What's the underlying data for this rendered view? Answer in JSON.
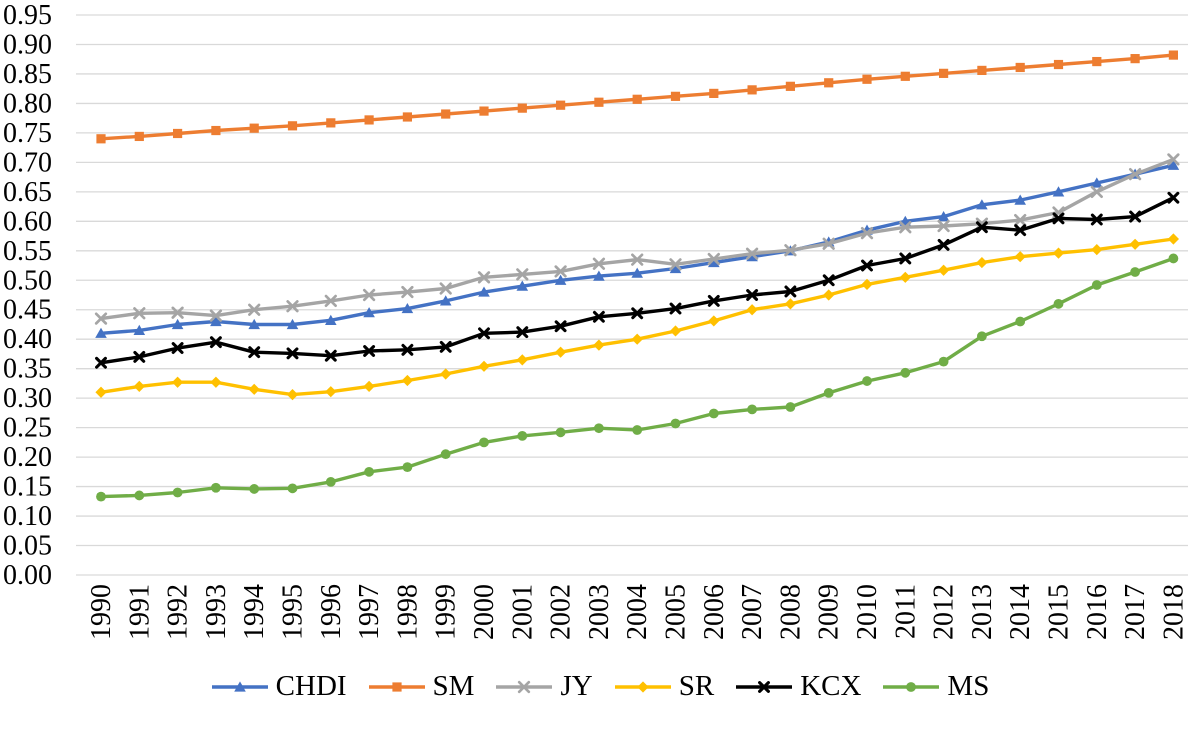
{
  "chart_data": {
    "type": "line",
    "title": "",
    "xlabel": "",
    "ylabel": "",
    "grid": true,
    "gridline_color": "#D9D9D9",
    "background_color": "#FFFFFF",
    "text_color": "#000000",
    "legend_position": "bottom",
    "ylim": [
      0.0,
      0.95
    ],
    "y_tick_step": 0.05,
    "y_tick_labels": [
      "0.00",
      "0.05",
      "0.10",
      "0.15",
      "0.20",
      "0.25",
      "0.30",
      "0.35",
      "0.40",
      "0.45",
      "0.50",
      "0.55",
      "0.60",
      "0.65",
      "0.70",
      "0.75",
      "0.80",
      "0.85",
      "0.90",
      "0.95"
    ],
    "categories": [
      "1990",
      "1991",
      "1992",
      "1993",
      "1994",
      "1995",
      "1996",
      "1997",
      "1998",
      "1999",
      "2000",
      "2001",
      "2002",
      "2003",
      "2004",
      "2005",
      "2006",
      "2007",
      "2008",
      "2009",
      "2010",
      "2011",
      "2012",
      "2013",
      "2014",
      "2015",
      "2016",
      "2017",
      "2018"
    ],
    "series": [
      {
        "name": "CHDI",
        "color": "#4472C4",
        "marker": "triangle",
        "values": [
          0.41,
          0.415,
          0.425,
          0.43,
          0.425,
          0.425,
          0.432,
          0.445,
          0.452,
          0.465,
          0.48,
          0.49,
          0.5,
          0.507,
          0.512,
          0.52,
          0.53,
          0.54,
          0.55,
          0.565,
          0.585,
          0.6,
          0.608,
          0.628,
          0.636,
          0.65,
          0.665,
          0.68,
          0.695
        ]
      },
      {
        "name": "SM",
        "color": "#ED7D31",
        "marker": "square",
        "values": [
          0.74,
          0.744,
          0.749,
          0.754,
          0.758,
          0.762,
          0.767,
          0.772,
          0.777,
          0.782,
          0.787,
          0.792,
          0.797,
          0.802,
          0.807,
          0.812,
          0.817,
          0.823,
          0.829,
          0.835,
          0.841,
          0.846,
          0.851,
          0.856,
          0.861,
          0.866,
          0.871,
          0.876,
          0.882
        ]
      },
      {
        "name": "JY",
        "color": "#A5A5A5",
        "marker": "x",
        "values": [
          0.435,
          0.444,
          0.445,
          0.44,
          0.45,
          0.456,
          0.465,
          0.475,
          0.48,
          0.486,
          0.505,
          0.51,
          0.515,
          0.528,
          0.535,
          0.527,
          0.536,
          0.545,
          0.551,
          0.562,
          0.58,
          0.59,
          0.592,
          0.596,
          0.602,
          0.615,
          0.65,
          0.68,
          0.705
        ]
      },
      {
        "name": "SR",
        "color": "#FFC000",
        "marker": "diamond",
        "values": [
          0.31,
          0.32,
          0.327,
          0.327,
          0.315,
          0.306,
          0.311,
          0.32,
          0.33,
          0.341,
          0.354,
          0.365,
          0.378,
          0.39,
          0.4,
          0.414,
          0.431,
          0.45,
          0.46,
          0.475,
          0.493,
          0.505,
          0.517,
          0.53,
          0.54,
          0.546,
          0.552,
          0.561,
          0.57
        ]
      },
      {
        "name": "KCX",
        "color": "#000000",
        "marker": "star",
        "values": [
          0.36,
          0.37,
          0.385,
          0.395,
          0.378,
          0.376,
          0.372,
          0.38,
          0.382,
          0.387,
          0.41,
          0.412,
          0.422,
          0.438,
          0.444,
          0.452,
          0.465,
          0.475,
          0.481,
          0.5,
          0.525,
          0.537,
          0.56,
          0.59,
          0.585,
          0.605,
          0.603,
          0.608,
          0.64
        ]
      },
      {
        "name": "MS",
        "color": "#70AD47",
        "marker": "circle",
        "values": [
          0.133,
          0.135,
          0.14,
          0.148,
          0.146,
          0.147,
          0.158,
          0.175,
          0.183,
          0.205,
          0.225,
          0.236,
          0.242,
          0.249,
          0.246,
          0.257,
          0.274,
          0.281,
          0.285,
          0.309,
          0.329,
          0.343,
          0.362,
          0.405,
          0.43,
          0.46,
          0.492,
          0.514,
          0.537
        ]
      }
    ]
  }
}
